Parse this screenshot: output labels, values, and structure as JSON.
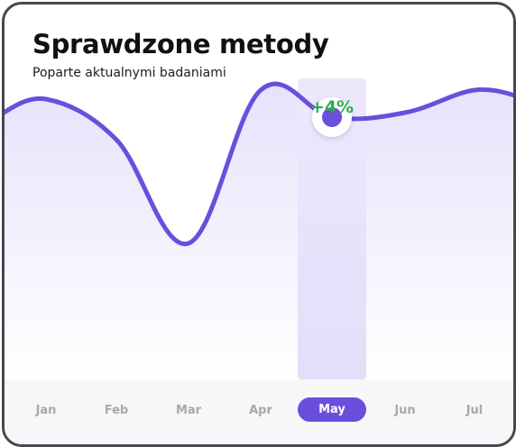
{
  "header": {
    "title": "Sprawdzone metody",
    "subtitle": "Poparte aktualnymi badaniami"
  },
  "colors": {
    "accent": "#6a4fdc",
    "area_fill": "#e9e5fb",
    "highlight_band": "#e6e1fa",
    "positive": "#2faa55",
    "border": "#47474d"
  },
  "chart_data": {
    "type": "area",
    "categories": [
      "Jan",
      "Feb",
      "Mar",
      "Apr",
      "May",
      "Jun",
      "Jul"
    ],
    "values": [
      15,
      6,
      -17,
      17,
      11,
      12,
      17
    ],
    "selected_category": "May",
    "annotation": "+4%",
    "grid": false,
    "legend": "none"
  }
}
